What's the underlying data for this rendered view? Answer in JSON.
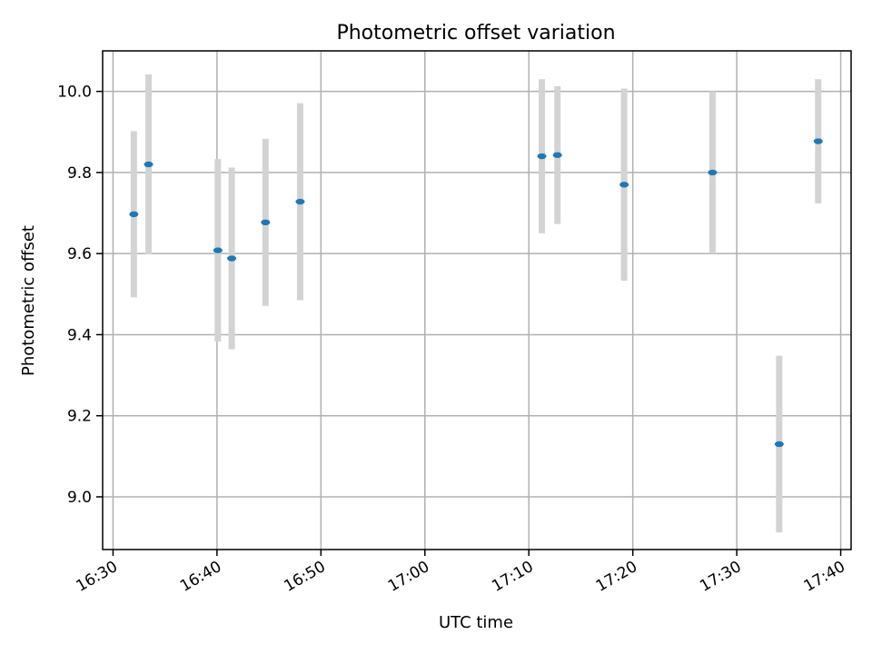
{
  "chart_data": {
    "type": "scatter",
    "title": "Photometric offset variation",
    "xlabel": "UTC time",
    "ylabel": "Photometric offset",
    "x_is_time": true,
    "xlim": [
      "16:29",
      "17:41"
    ],
    "ylim": [
      8.87,
      10.1
    ],
    "xticks": [
      "16:30",
      "16:40",
      "16:50",
      "17:00",
      "17:10",
      "17:20",
      "17:30",
      "17:40"
    ],
    "yticks": [
      9.0,
      9.2,
      9.4,
      9.6,
      9.8,
      10.0
    ],
    "ytick_labels": [
      "9.0",
      "9.2",
      "9.4",
      "9.6",
      "9.8",
      "10.0"
    ],
    "grid": true,
    "point_color": "#1f77b4",
    "errorbar_color": "#d3d3d3",
    "series": [
      {
        "points": [
          {
            "x": "16:32:00",
            "y": 9.697,
            "yerr": 0.205
          },
          {
            "x": "16:33:25",
            "y": 9.82,
            "yerr": 0.222
          },
          {
            "x": "16:40:05",
            "y": 9.608,
            "yerr": 0.225
          },
          {
            "x": "16:41:25",
            "y": 9.588,
            "yerr": 0.224
          },
          {
            "x": "16:44:40",
            "y": 9.677,
            "yerr": 0.206
          },
          {
            "x": "16:48:00",
            "y": 9.728,
            "yerr": 0.243
          },
          {
            "x": "17:11:15",
            "y": 9.84,
            "yerr": 0.19
          },
          {
            "x": "17:12:45",
            "y": 9.843,
            "yerr": 0.17
          },
          {
            "x": "17:19:10",
            "y": 9.77,
            "yerr": 0.237
          },
          {
            "x": "17:27:40",
            "y": 9.8,
            "yerr": 0.2
          },
          {
            "x": "17:34:05",
            "y": 9.13,
            "yerr": 0.218
          },
          {
            "x": "17:37:50",
            "y": 9.877,
            "yerr": 0.153
          }
        ]
      }
    ]
  }
}
